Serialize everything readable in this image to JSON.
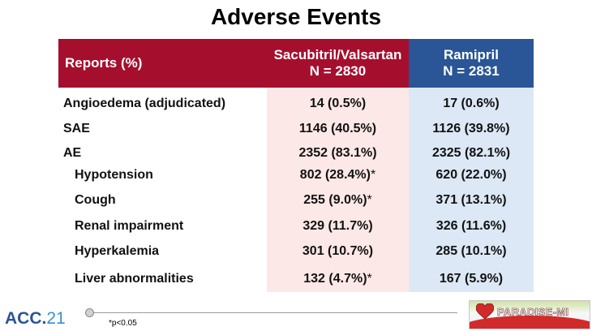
{
  "title": "Adverse Events",
  "table": {
    "header": {
      "label": "Reports (%)",
      "col1_line1": "Sacubitril/Valsartan",
      "col1_line2": "N = 2830",
      "col2_line1": "Ramipril",
      "col2_line2": "N = 2831"
    },
    "rows": [
      {
        "label": "Angioedema (adjudicated)",
        "v1": "14 (0.5%)",
        "v1_mark": "",
        "v2": "17 (0.6%)"
      },
      {
        "label": "SAE",
        "v1": "1146 (40.5%)",
        "v1_mark": "",
        "v2": "1126 (39.8%)"
      },
      {
        "label": "AE",
        "v1": "2352 (83.1%)",
        "v1_mark": "",
        "v2": "2325 (82.1%)"
      },
      {
        "label": "Hypotension",
        "v1": "802 (28.4%)",
        "v1_mark": "*",
        "v2": "620 (22.0%)"
      },
      {
        "label": "Cough",
        "v1": "255 (9.0%)",
        "v1_mark": "*",
        "v2": "371 (13.1%)"
      },
      {
        "label": "Renal impairment",
        "v1": "329 (11.7%)",
        "v1_mark": "",
        "v2": "326 (11.6%)"
      },
      {
        "label": "Hyperkalemia",
        "v1": "301 (10.7%)",
        "v1_mark": "",
        "v2": "285 (10.1%)"
      },
      {
        "label": "Liver abnormalities",
        "v1": "132 (4.7%)",
        "v1_mark": "*",
        "v2": "167 (5.9%)"
      }
    ]
  },
  "footnote": "*p<0.05",
  "logo_acc": {
    "text": "ACC.",
    "number": "21"
  },
  "logo_paradise": "PARADISE-MI",
  "colors": {
    "header_red": "#a50f2d",
    "header_blue": "#2a5596",
    "col1_bg": "#fce8e7",
    "col2_bg": "#dce8f5"
  }
}
